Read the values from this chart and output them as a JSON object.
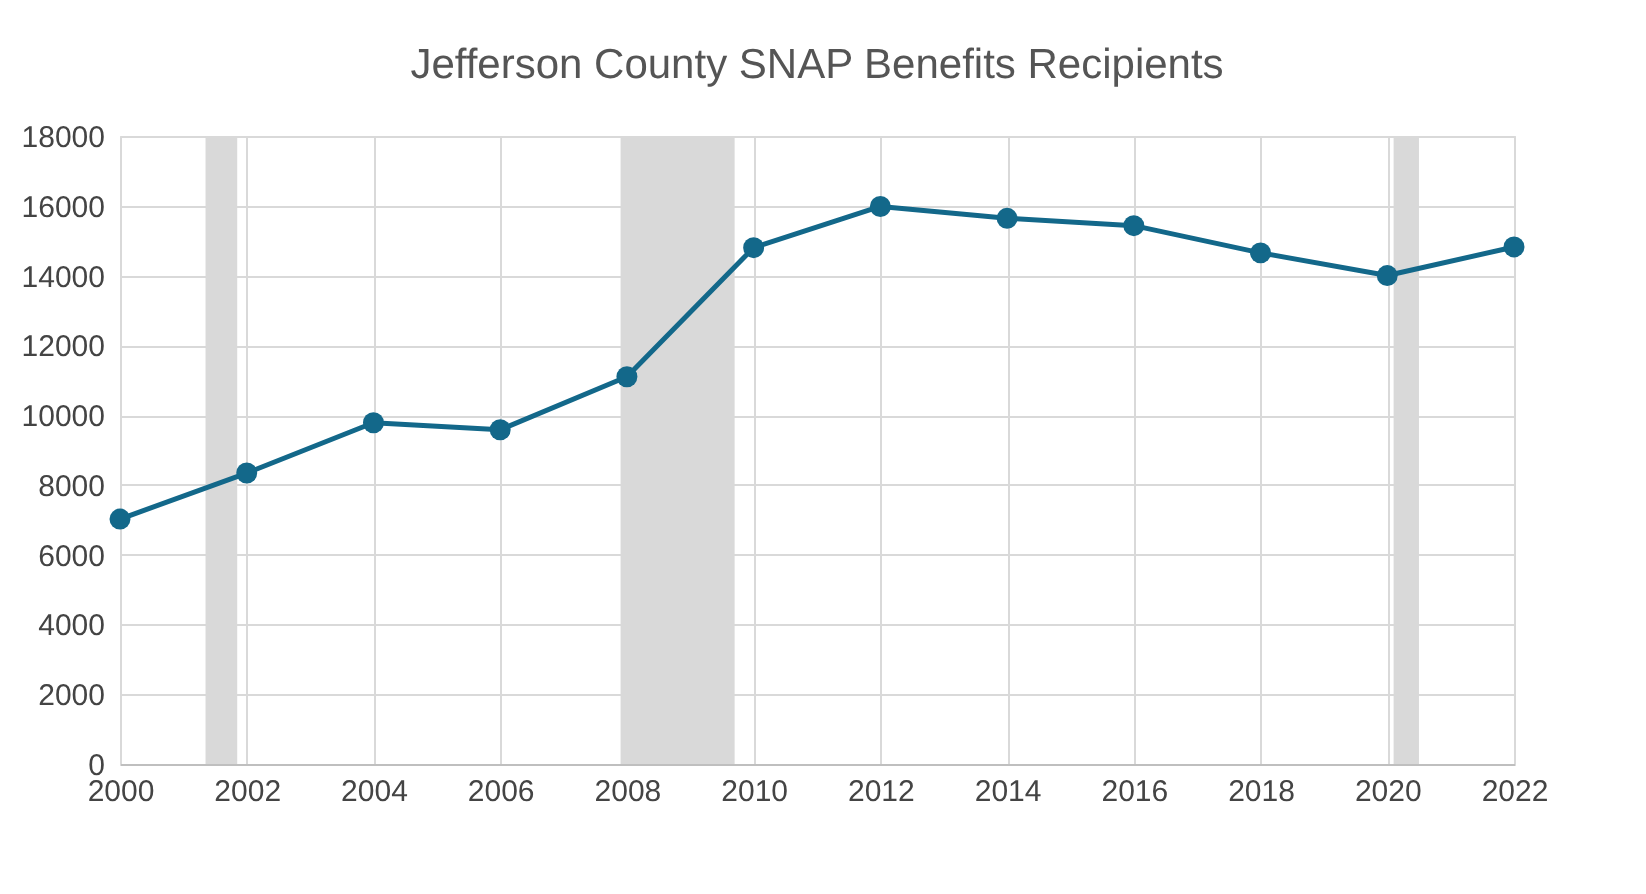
{
  "chart_data": {
    "type": "line",
    "title": "Jefferson County SNAP Benefits Recipients",
    "x": [
      2000,
      2002,
      2004,
      2006,
      2008,
      2010,
      2012,
      2014,
      2016,
      2018,
      2020,
      2022
    ],
    "series": [
      {
        "color": "#13688a",
        "values": [
          7020,
          8340,
          9780,
          9580,
          11100,
          14800,
          15980,
          15640,
          15430,
          14650,
          14000,
          14820
        ]
      }
    ],
    "xlim": [
      2000,
      2022
    ],
    "xticks": [
      2000,
      2002,
      2004,
      2006,
      2008,
      2010,
      2012,
      2014,
      2016,
      2018,
      2020,
      2022
    ],
    "ylim": [
      0,
      18000
    ],
    "yticks": [
      0,
      2000,
      4000,
      6000,
      8000,
      10000,
      12000,
      14000,
      16000,
      18000
    ],
    "bands": [
      {
        "axis": "x",
        "from": 2001.35,
        "to": 2001.85,
        "color": "#d9d9d9"
      },
      {
        "axis": "x",
        "from": 2007.9,
        "to": 2009.7,
        "color": "#d9d9d9"
      },
      {
        "axis": "x",
        "from": 2020.1,
        "to": 2020.5,
        "color": "#d9d9d9"
      }
    ],
    "grid": true,
    "marker": "circle",
    "line_style": "solid"
  }
}
